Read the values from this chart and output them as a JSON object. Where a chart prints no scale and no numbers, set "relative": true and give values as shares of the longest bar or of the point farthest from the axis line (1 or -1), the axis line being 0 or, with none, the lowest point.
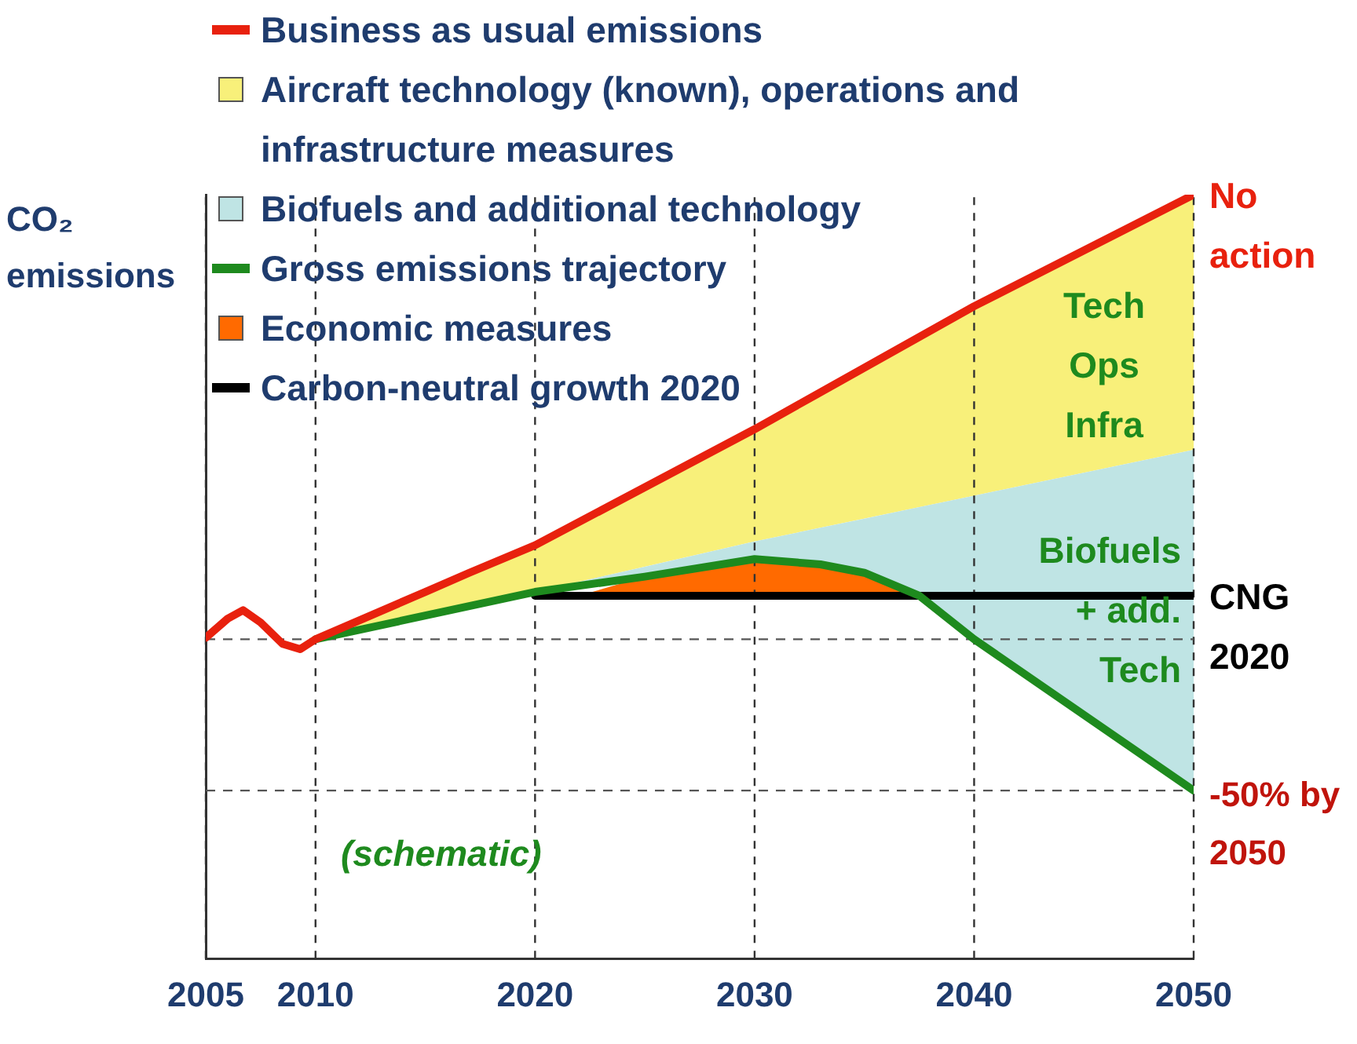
{
  "chart_data": {
    "type": "line",
    "ylabel": "CO₂ emissions",
    "relative": true,
    "xlim": [
      2005,
      2050
    ],
    "xticks": [
      2005,
      2010,
      2020,
      2030,
      2040,
      2050
    ],
    "grid": "x",
    "legend": "top left",
    "series": [
      {
        "name": "Business as usual emissions",
        "color": "#e8210e",
        "x": [
          2005,
          2006,
          2006.7,
          2007.5,
          2008.5,
          2009.3,
          2010,
          2015,
          2017,
          2020,
          2030,
          2040,
          2050
        ],
        "values": [
          0.42,
          0.445,
          0.456,
          0.44,
          0.412,
          0.405,
          0.418,
          0.48,
          0.505,
          0.541,
          0.693,
          0.854,
          1
        ]
      },
      {
        "name": "Aircraft technology (known), operations and infrastructure measures",
        "type": "area",
        "color": "#f8f07a",
        "x": [
          2010,
          2015,
          2017,
          2020,
          2030,
          2040,
          2050
        ],
        "values": [
          0.418,
          0.48,
          0.505,
          0.541,
          0.693,
          0.854,
          1
        ]
      },
      {
        "name": "Biofuels and additional technology",
        "type": "area",
        "color": "#bfe4e4",
        "x": [
          2010,
          2020,
          2025,
          2030,
          2033,
          2035,
          2037.5,
          2040,
          2050
        ],
        "values": [
          0.418,
          0.48,
          0.513,
          0.546,
          0.564,
          0.576,
          0.591,
          0.606,
          0.666
        ]
      },
      {
        "name": "Gross emissions trajectory",
        "color": "#1e8a1e",
        "x": [
          2010,
          2020,
          2025,
          2030,
          2033,
          2035,
          2037.5,
          2040,
          2050
        ],
        "values": [
          0.418,
          0.48,
          0.5,
          0.523,
          0.516,
          0.505,
          0.475,
          0.418,
          0.22
        ]
      },
      {
        "name": "Economic measures",
        "type": "area",
        "color": "#ff6a00",
        "x": [
          2022,
          2025,
          2030,
          2033,
          2035,
          2037.5
        ],
        "values": [
          0.475,
          0.5,
          0.523,
          0.516,
          0.505,
          0.475
        ]
      },
      {
        "name": "Carbon-neutral growth 2020",
        "color": "#000000",
        "x": [
          2020,
          2050
        ],
        "values": [
          0.475,
          0.475
        ]
      }
    ],
    "ref_lines": [
      {
        "axis": "y",
        "value": 0.418,
        "color": "#555555",
        "line_style": "dashed"
      },
      {
        "axis": "y",
        "value": 0.22,
        "label": "-50% by\n2050",
        "color": "#555555",
        "line_style": "dashed"
      }
    ],
    "annotations": [
      {
        "text": "No\naction",
        "x": 2050,
        "y": 1
      },
      "Tech\nOps\nInfra",
      "Biofuels\n+ add.\nTech",
      {
        "text": "CNG\n2020",
        "x": 2050,
        "y": 0.475
      },
      "(schematic)"
    ]
  }
}
